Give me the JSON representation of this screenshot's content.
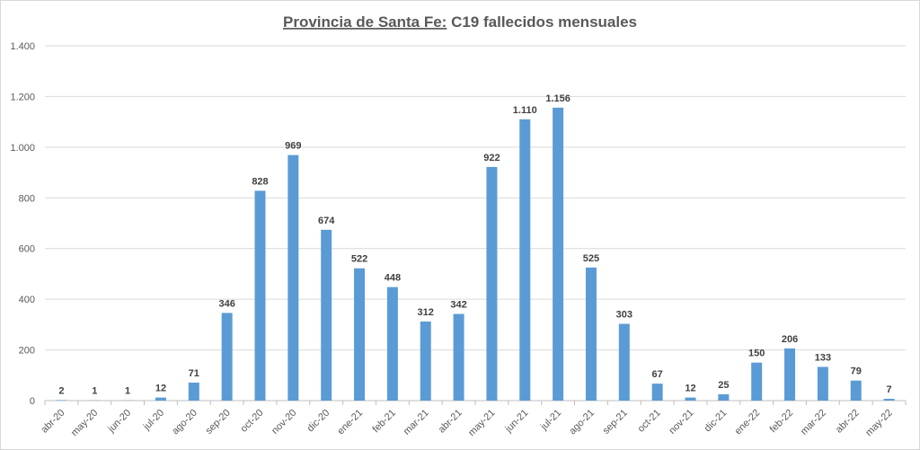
{
  "chart_data": {
    "type": "bar",
    "title_underlined": "Provincia de Santa Fe:",
    "title_rest": " C19 fallecidos mensuales",
    "categories": [
      "abr-20",
      "may-20",
      "jun-20",
      "jul-20",
      "ago-20",
      "sep-20",
      "oct-20",
      "nov-20",
      "dic-20",
      "ene-21",
      "feb-21",
      "mar-21",
      "abr-21",
      "may-21",
      "jun-21",
      "jul-21",
      "ago-21",
      "sep-21",
      "oct-21",
      "nov-21",
      "dic-21",
      "ene-22",
      "feb-22",
      "mar-22",
      "abr-22",
      "may-22"
    ],
    "values": [
      2,
      1,
      1,
      12,
      71,
      346,
      828,
      969,
      674,
      522,
      448,
      312,
      342,
      922,
      1110,
      1156,
      525,
      303,
      67,
      12,
      25,
      150,
      206,
      133,
      79,
      7
    ],
    "ylim": [
      0,
      1400
    ],
    "yticks": [
      0,
      200,
      400,
      600,
      800,
      1000,
      1200,
      1400
    ],
    "grid": true,
    "xlabel": "",
    "ylabel": "",
    "bar_color": "#5b9bd5"
  }
}
